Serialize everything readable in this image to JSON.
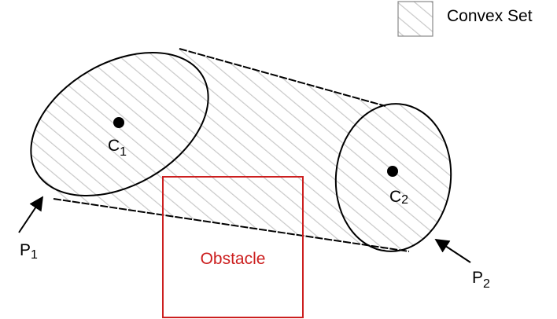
{
  "legend": {
    "label": "Convex Set"
  },
  "labels": {
    "c1_main": "C",
    "c1_sub": "1",
    "c2_main": "C",
    "c2_sub": "2",
    "p1_main": "P",
    "p1_sub": "1",
    "p2_main": "P",
    "p2_sub": "2",
    "obstacle": "Obstacle"
  },
  "colors": {
    "outline": "#000000",
    "hatch": "#c8c8c8",
    "obstacle": "#cc1f1f"
  }
}
